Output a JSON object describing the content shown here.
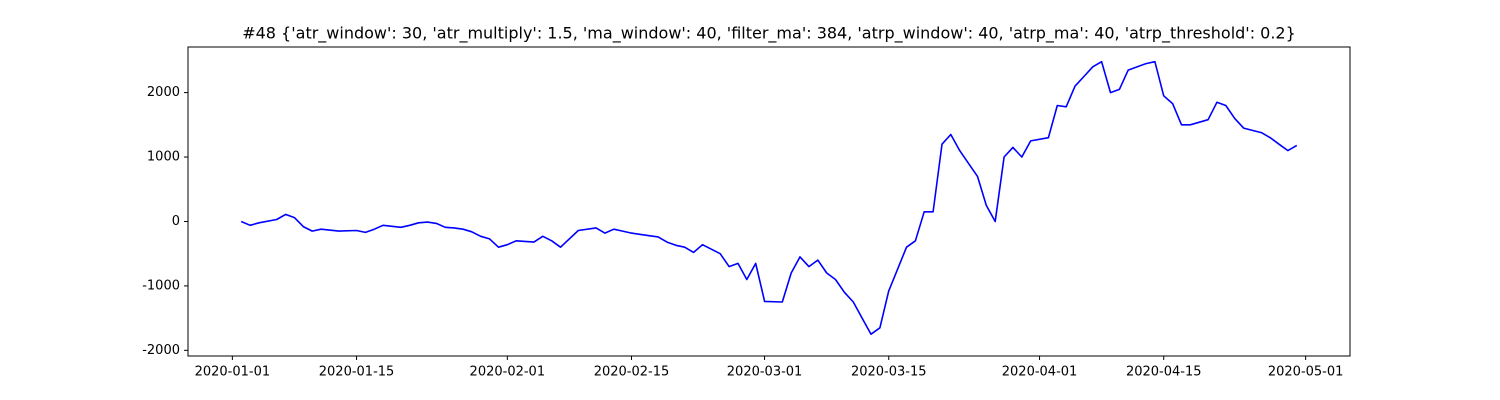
{
  "chart_data": {
    "type": "line",
    "title": "#48 {'atr_window': 30, 'atr_multiply': 1.5, 'ma_window': 40, 'filter_ma': 384, 'atrp_window': 40, 'atrp_ma': 40, 'atrp_threshold': 0.2}",
    "x": [
      "2020-01-02",
      "2020-01-03",
      "2020-01-04",
      "2020-01-06",
      "2020-01-07",
      "2020-01-08",
      "2020-01-09",
      "2020-01-10",
      "2020-01-11",
      "2020-01-13",
      "2020-01-15",
      "2020-01-16",
      "2020-01-17",
      "2020-01-18",
      "2020-01-20",
      "2020-01-21",
      "2020-01-22",
      "2020-01-23",
      "2020-01-24",
      "2020-01-25",
      "2020-01-26",
      "2020-01-27",
      "2020-01-28",
      "2020-01-29",
      "2020-01-30",
      "2020-01-31",
      "2020-02-01",
      "2020-02-02",
      "2020-02-04",
      "2020-02-05",
      "2020-02-06",
      "2020-02-07",
      "2020-02-09",
      "2020-02-11",
      "2020-02-12",
      "2020-02-13",
      "2020-02-14",
      "2020-02-15",
      "2020-02-16",
      "2020-02-18",
      "2020-02-19",
      "2020-02-20",
      "2020-02-21",
      "2020-02-22",
      "2020-02-23",
      "2020-02-25",
      "2020-02-26",
      "2020-02-27",
      "2020-02-28",
      "2020-02-29",
      "2020-03-01",
      "2020-03-03",
      "2020-03-04",
      "2020-03-05",
      "2020-03-06",
      "2020-03-07",
      "2020-03-08",
      "2020-03-09",
      "2020-03-10",
      "2020-03-11",
      "2020-03-12",
      "2020-03-13",
      "2020-03-14",
      "2020-03-15",
      "2020-03-17",
      "2020-03-18",
      "2020-03-19",
      "2020-03-20",
      "2020-03-21",
      "2020-03-22",
      "2020-03-23",
      "2020-03-25",
      "2020-03-26",
      "2020-03-27",
      "2020-03-28",
      "2020-03-29",
      "2020-03-30",
      "2020-03-31",
      "2020-04-02",
      "2020-04-03",
      "2020-04-04",
      "2020-04-05",
      "2020-04-06",
      "2020-04-07",
      "2020-04-08",
      "2020-04-09",
      "2020-04-10",
      "2020-04-11",
      "2020-04-13",
      "2020-04-14",
      "2020-04-15",
      "2020-04-16",
      "2020-04-17",
      "2020-04-18",
      "2020-04-20",
      "2020-04-21",
      "2020-04-22",
      "2020-04-23",
      "2020-04-24",
      "2020-04-26",
      "2020-04-27",
      "2020-04-28",
      "2020-04-29",
      "2020-04-30"
    ],
    "series": [
      {
        "color": "#0000ff",
        "values": [
          0,
          -60,
          -20,
          30,
          110,
          60,
          -80,
          -150,
          -120,
          -150,
          -140,
          -170,
          -120,
          -60,
          -90,
          -60,
          -20,
          -10,
          -30,
          -90,
          -100,
          -120,
          -160,
          -230,
          -270,
          -400,
          -360,
          -300,
          -320,
          -230,
          -300,
          -400,
          -140,
          -100,
          -180,
          -120,
          -150,
          -180,
          -200,
          -240,
          -320,
          -370,
          -400,
          -480,
          -360,
          -500,
          -700,
          -650,
          -900,
          -650,
          -1240,
          -1250,
          -800,
          -550,
          -700,
          -600,
          -800,
          -900,
          -1100,
          -1250,
          -1500,
          -1750,
          -1650,
          -1080,
          -400,
          -300,
          150,
          150,
          1200,
          1350,
          1100,
          700,
          250,
          0,
          1000,
          1150,
          1000,
          1250,
          1300,
          1800,
          1780,
          2100,
          2250,
          2400,
          2480,
          2000,
          2050,
          2350,
          2450,
          2480,
          1950,
          1830,
          1500,
          1500,
          1580,
          1850,
          1800,
          1600,
          1450,
          1380,
          1300,
          1200,
          1100,
          1180
        ]
      }
    ],
    "xlim": [
      "2019-12-27",
      "2020-05-06"
    ],
    "xticks": [
      "2020-01-01",
      "2020-01-15",
      "2020-02-01",
      "2020-02-15",
      "2020-03-01",
      "2020-03-15",
      "2020-04-01",
      "2020-04-15",
      "2020-05-01"
    ],
    "ylim": [
      -2088,
      2708
    ],
    "yticks": [
      -2000,
      -1000,
      0,
      1000,
      2000
    ]
  }
}
